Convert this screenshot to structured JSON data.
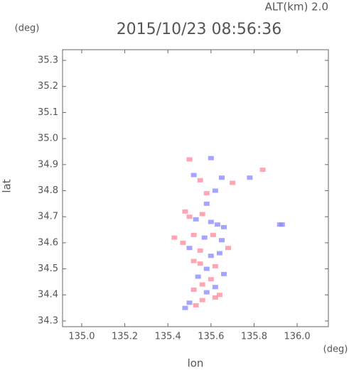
{
  "chart_data": {
    "type": "scatter",
    "title": "2015/10/23 08:56:36",
    "subtitle": "ALT(km) 2.0",
    "x_label": "lon",
    "y_label": "lat",
    "x_unit": "(deg)",
    "y_unit": "(deg)",
    "xlim": [
      134.911,
      136.145
    ],
    "ylim": [
      34.278,
      35.341
    ],
    "xticks": [
      {
        "value": 135,
        "label": "135.0"
      },
      135.2,
      135.4,
      135.6,
      135.8,
      {
        "value": 136,
        "label": "136.0"
      }
    ],
    "yticks": [
      34.3,
      34.4,
      34.5,
      34.6,
      34.7,
      34.8,
      34.9,
      {
        "value": 35,
        "label": "35.0"
      },
      35.1,
      35.2,
      35.3
    ],
    "x": [
      135.5,
      135.6,
      135.52,
      135.55,
      135.65,
      135.7,
      135.78,
      135.84,
      135.92,
      135.58,
      135.62,
      135.48,
      135.5,
      135.53,
      135.56,
      135.6,
      135.63,
      135.66,
      135.52,
      135.57,
      135.61,
      135.65,
      135.47,
      135.5,
      135.55,
      135.6,
      135.64,
      135.68,
      135.52,
      135.58,
      135.62,
      135.54,
      135.6,
      135.66,
      135.56,
      135.62,
      135.52,
      135.58,
      135.64,
      135.5,
      135.56,
      135.62,
      135.48,
      135.53,
      135.43,
      135.93,
      135.58,
      135.55
    ],
    "y": [
      34.92,
      34.925,
      34.86,
      34.84,
      34.85,
      34.83,
      34.85,
      34.88,
      34.67,
      34.79,
      34.8,
      34.72,
      34.7,
      34.69,
      34.71,
      34.68,
      34.67,
      34.66,
      34.63,
      34.62,
      34.63,
      34.61,
      34.6,
      34.58,
      34.57,
      34.55,
      34.56,
      34.58,
      34.53,
      34.5,
      34.51,
      34.47,
      34.46,
      34.48,
      34.44,
      34.43,
      34.42,
      34.41,
      34.4,
      34.37,
      34.38,
      34.39,
      34.35,
      34.36,
      34.62,
      34.67,
      34.75,
      34.52
    ],
    "colors": [
      "#ff8fa0",
      "#8f8fff",
      "#8f8fff",
      "#ff8fa0",
      "#8f8fff",
      "#ff8fa0",
      "#8f8fff",
      "#ff8fa0",
      "#8f8fff",
      "#ff8fa0",
      "#8f8fff",
      "#ff8fa0",
      "#ff8fa0",
      "#8f8fff",
      "#ff8fa0",
      "#8f8fff",
      "#8f8fff",
      "#8f8fff",
      "#ff8fa0",
      "#8f8fff",
      "#ff8fa0",
      "#8f8fff",
      "#ff8fa0",
      "#8f8fff",
      "#ff8fa0",
      "#8f8fff",
      "#8f8fff",
      "#ff8fa0",
      "#ff8fa0",
      "#8f8fff",
      "#ff8fa0",
      "#8f8fff",
      "#ff8fa0",
      "#8f8fff",
      "#ff8fa0",
      "#8f8fff",
      "#ff8fa0",
      "#8f8fff",
      "#ff8fa0",
      "#8f8fff",
      "#ff8fa0",
      "#ff8fa0",
      "#8f8fff",
      "#ff8fa0",
      "#ff8fa0",
      "#8f8fff",
      "#8f8fff",
      "#ff8fa0"
    ]
  }
}
